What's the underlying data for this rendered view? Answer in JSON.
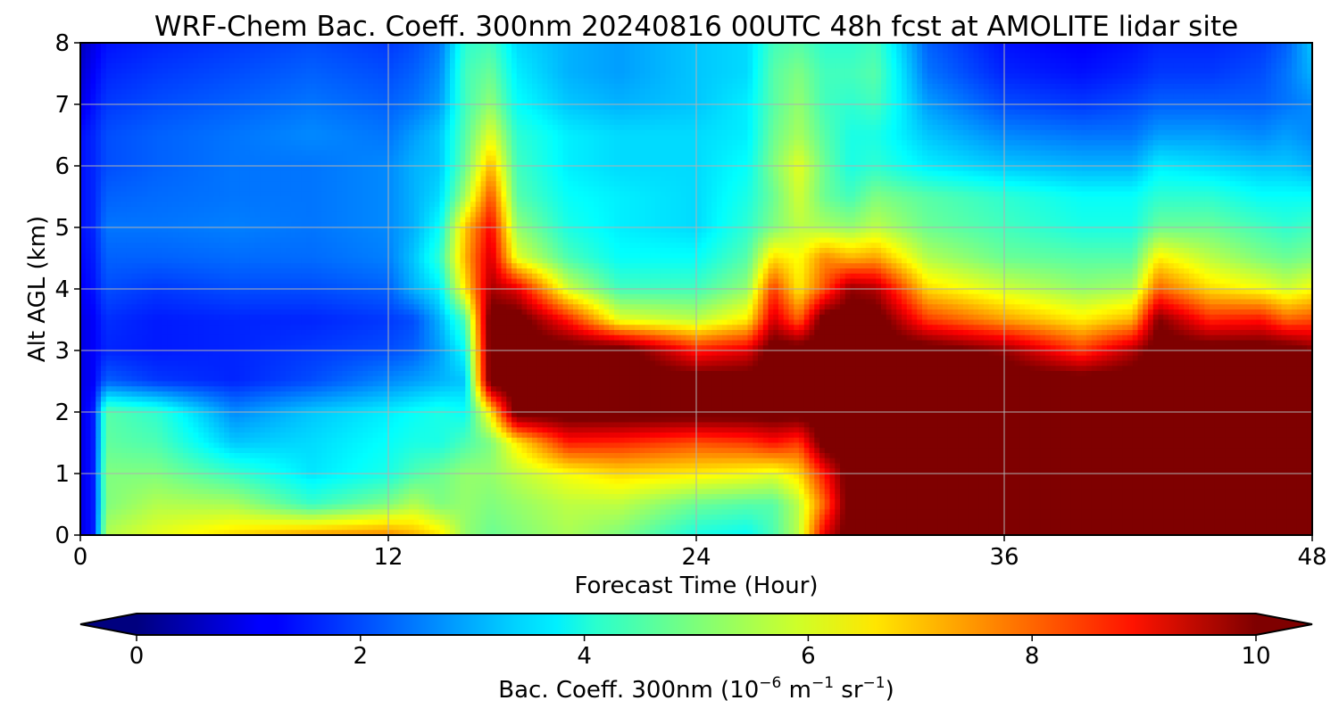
{
  "chart_data": {
    "type": "heatmap",
    "title": "WRF-Chem Bac. Coeff. 300nm  20240816 00UTC 48h fcst at AMOLITE lidar site",
    "xlabel": "Forecast Time (Hour)",
    "ylabel": "Alt AGL (km)",
    "xlim": [
      0,
      48
    ],
    "ylim": [
      0,
      8
    ],
    "xticks": [
      0,
      12,
      24,
      36,
      48
    ],
    "yticks": [
      0,
      1,
      2,
      3,
      4,
      5,
      6,
      7,
      8
    ],
    "grid": true,
    "colorbar": {
      "label_main": "Bac. Coeff. 300nm  (10",
      "label_exp1": "−6",
      "label_unit1": " m",
      "label_exp2": "−1",
      "label_unit2": " sr",
      "label_exp3": "−1",
      "label_close": ")",
      "vmin": 0,
      "vmax": 10,
      "ticks": [
        0,
        2,
        4,
        6,
        8,
        10
      ],
      "extend": "both",
      "colormap": "jet"
    },
    "x": [
      0,
      0.5,
      1,
      3,
      6,
      9,
      12,
      13,
      14,
      15,
      16,
      17,
      19,
      21,
      24,
      26,
      27,
      28,
      29,
      30,
      31,
      33,
      36,
      39,
      41,
      42,
      44,
      46,
      47,
      48
    ],
    "y": [
      0,
      0.5,
      1,
      1.5,
      2,
      2.5,
      3,
      3.5,
      4,
      4.5,
      5,
      5.5,
      6,
      6.5,
      7,
      7.5,
      8
    ],
    "values": [
      [
        1.0,
        1.5,
        5.5,
        6.0,
        6.6,
        7.2,
        7.4,
        7.0,
        6.5,
        5.2,
        4.8,
        5.0,
        5.4,
        5.0,
        4.0,
        3.8,
        4.5,
        5.6,
        9.0,
        10.5,
        10.5,
        10.5,
        10.5,
        10.5,
        10.5,
        10.5,
        10.5,
        10.5,
        10.5,
        10.5
      ],
      [
        1.0,
        1.5,
        5.0,
        5.5,
        5.4,
        4.3,
        5.0,
        5.5,
        5.0,
        5.2,
        5.0,
        5.2,
        5.6,
        5.6,
        4.8,
        4.6,
        4.6,
        5.6,
        7.8,
        10.5,
        10.5,
        10.5,
        10.5,
        10.5,
        10.5,
        10.5,
        10.5,
        10.5,
        10.5,
        10.5
      ],
      [
        1.0,
        1.5,
        5.0,
        5.0,
        4.3,
        3.5,
        4.0,
        4.5,
        4.8,
        5.2,
        5.2,
        5.6,
        6.2,
        6.6,
        6.4,
        6.2,
        6.0,
        6.6,
        8.6,
        10.5,
        10.5,
        10.5,
        10.5,
        10.5,
        10.5,
        10.5,
        10.5,
        10.5,
        10.5,
        10.5
      ],
      [
        1.0,
        1.5,
        4.7,
        4.5,
        3.2,
        3.4,
        3.8,
        4.0,
        4.0,
        4.5,
        5.0,
        6.4,
        8.5,
        8.4,
        8.0,
        8.2,
        8.6,
        8.2,
        10.5,
        10.5,
        10.5,
        10.5,
        10.5,
        10.5,
        10.5,
        10.5,
        10.5,
        10.5,
        10.5,
        10.5
      ],
      [
        1.0,
        1.5,
        4.6,
        4.2,
        2.6,
        3.2,
        3.6,
        3.8,
        4.0,
        3.8,
        6.5,
        10.5,
        10.5,
        10.5,
        10.5,
        10.5,
        10.5,
        10.5,
        10.5,
        10.5,
        10.5,
        10.5,
        10.5,
        10.5,
        10.5,
        10.5,
        10.5,
        10.5,
        10.5,
        10.5
      ],
      [
        1.0,
        1.2,
        2.2,
        1.8,
        1.6,
        2.0,
        2.6,
        2.8,
        3.0,
        3.2,
        10.5,
        10.5,
        10.5,
        10.5,
        10.5,
        10.5,
        10.5,
        10.5,
        10.5,
        10.5,
        10.5,
        10.5,
        10.5,
        10.5,
        10.5,
        10.5,
        10.5,
        10.5,
        10.5,
        10.5
      ],
      [
        1.0,
        1.2,
        1.6,
        1.5,
        1.6,
        1.8,
        2.0,
        2.2,
        2.8,
        3.8,
        10.5,
        10.5,
        10.5,
        10.5,
        8.5,
        9.0,
        10.5,
        10.5,
        10.5,
        10.5,
        10.5,
        10.5,
        9.8,
        8.2,
        9.5,
        10.5,
        10.5,
        10.5,
        10.5,
        10.0
      ],
      [
        1.0,
        1.2,
        1.7,
        1.5,
        1.6,
        1.6,
        1.8,
        2.0,
        3.0,
        4.5,
        10.5,
        10.5,
        8.5,
        6.0,
        5.6,
        6.4,
        9.2,
        7.8,
        10.5,
        10.5,
        10.5,
        8.2,
        7.2,
        6.4,
        7.0,
        10.0,
        8.4,
        8.6,
        7.8,
        8.0
      ],
      [
        1.2,
        1.4,
        2.0,
        1.8,
        2.0,
        2.0,
        2.2,
        3.0,
        3.6,
        6.5,
        9.6,
        9.0,
        5.8,
        4.4,
        4.4,
        5.2,
        8.2,
        6.4,
        8.0,
        9.8,
        9.5,
        6.6,
        5.8,
        5.2,
        5.4,
        7.8,
        6.6,
        6.2,
        5.8,
        6.2
      ],
      [
        1.3,
        1.5,
        2.2,
        2.2,
        2.3,
        2.3,
        2.5,
        3.2,
        4.2,
        7.0,
        9.2,
        6.0,
        4.5,
        3.8,
        3.8,
        4.6,
        6.6,
        6.2,
        7.4,
        7.0,
        7.2,
        5.5,
        4.8,
        4.6,
        4.6,
        6.4,
        5.6,
        5.0,
        4.8,
        5.0
      ],
      [
        1.4,
        1.6,
        2.4,
        2.4,
        2.5,
        2.4,
        2.6,
        3.0,
        3.8,
        6.8,
        8.8,
        5.2,
        4.0,
        3.6,
        3.4,
        4.2,
        5.0,
        5.6,
        5.4,
        5.2,
        5.6,
        4.8,
        4.4,
        4.0,
        4.0,
        4.8,
        4.8,
        4.4,
        4.2,
        4.4
      ],
      [
        1.4,
        1.6,
        2.2,
        2.3,
        2.4,
        2.4,
        2.6,
        3.0,
        3.4,
        5.4,
        8.0,
        4.6,
        3.8,
        3.6,
        3.4,
        4.0,
        4.8,
        5.8,
        4.8,
        4.4,
        5.0,
        4.6,
        4.2,
        3.8,
        3.8,
        4.2,
        4.2,
        3.8,
        3.8,
        3.8
      ],
      [
        1.4,
        1.6,
        2.0,
        2.2,
        2.4,
        2.4,
        2.6,
        3.0,
        3.2,
        4.8,
        7.0,
        4.4,
        3.6,
        3.4,
        3.4,
        3.8,
        5.0,
        6.0,
        4.8,
        4.0,
        4.2,
        3.6,
        3.2,
        3.0,
        3.0,
        3.6,
        3.4,
        3.2,
        3.2,
        3.0
      ],
      [
        1.4,
        1.6,
        2.0,
        2.2,
        2.4,
        2.6,
        2.4,
        2.8,
        3.2,
        4.6,
        6.0,
        4.2,
        3.6,
        3.4,
        3.4,
        3.6,
        4.8,
        5.4,
        4.6,
        4.0,
        4.0,
        3.2,
        2.6,
        2.4,
        2.4,
        2.8,
        2.8,
        2.6,
        2.8,
        2.6
      ],
      [
        1.0,
        1.4,
        1.8,
        2.0,
        2.2,
        2.4,
        2.2,
        2.4,
        2.8,
        4.4,
        5.2,
        3.8,
        3.2,
        3.0,
        3.2,
        3.6,
        4.6,
        5.2,
        4.4,
        4.2,
        4.4,
        2.8,
        2.0,
        1.8,
        2.0,
        2.2,
        2.2,
        2.2,
        2.4,
        2.6
      ],
      [
        0.8,
        1.2,
        1.6,
        1.8,
        2.0,
        2.2,
        2.0,
        2.2,
        2.6,
        4.4,
        4.8,
        3.6,
        3.0,
        2.8,
        3.2,
        3.4,
        4.6,
        5.0,
        4.4,
        4.4,
        4.6,
        2.4,
        1.6,
        1.4,
        1.6,
        1.8,
        1.8,
        2.0,
        2.4,
        3.0
      ],
      [
        0.6,
        1.0,
        1.4,
        1.6,
        1.8,
        2.0,
        1.8,
        2.0,
        2.4,
        4.2,
        4.4,
        3.4,
        3.0,
        2.8,
        3.2,
        3.4,
        4.4,
        4.6,
        4.2,
        4.2,
        4.4,
        2.2,
        1.4,
        1.2,
        1.4,
        1.6,
        1.6,
        1.8,
        2.2,
        3.2
      ]
    ]
  }
}
